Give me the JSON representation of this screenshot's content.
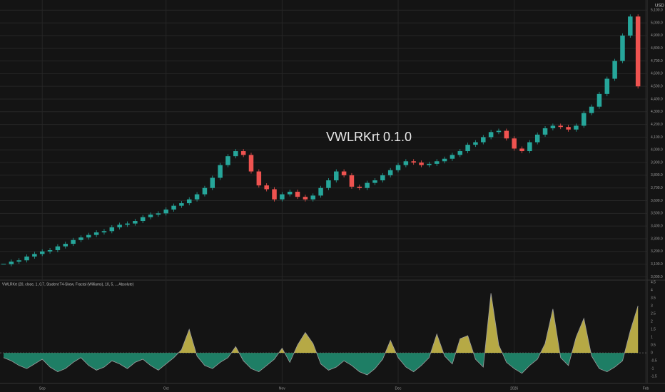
{
  "chart_data": [
    {
      "type": "candlestick",
      "watermark": "VWLRKrt 0.1.0",
      "currency": "USD",
      "values": [
        3100,
        3120,
        3130,
        3160,
        3180,
        3200,
        3210,
        3240,
        3260,
        3290,
        3310,
        3330,
        3350,
        3360,
        3390,
        3410,
        3420,
        3440,
        3470,
        3490,
        3500,
        3530,
        3560,
        3580,
        3610,
        3650,
        3700,
        3780,
        3880,
        3950,
        3990,
        3960,
        3830,
        3720,
        3690,
        3610,
        3650,
        3670,
        3630,
        3610,
        3640,
        3700,
        3760,
        3830,
        3800,
        3710,
        3700,
        3740,
        3760,
        3800,
        3840,
        3880,
        3910,
        3900,
        3880,
        3890,
        3910,
        3930,
        3960,
        3990,
        4040,
        4060,
        4100,
        4140,
        4150,
        4090,
        4010,
        3990,
        4060,
        4120,
        4170,
        4190,
        4180,
        4160,
        4190,
        4290,
        4340,
        4440,
        4560,
        4700,
        4900,
        5050,
        4500
      ],
      "xlim": [
        0,
        83
      ],
      "xticks": [
        {
          "value": 5,
          "label": "Sep"
        },
        {
          "value": 21,
          "label": "Oct"
        },
        {
          "value": 36,
          "label": "Nov"
        },
        {
          "value": 51,
          "label": "Dec"
        },
        {
          "value": 66,
          "label": "2026"
        },
        {
          "value": 83,
          "label": "Feb"
        }
      ],
      "ylim": [
        2980,
        5180
      ],
      "yticks": [
        {
          "value": 3000,
          "label": "3,000.0"
        },
        {
          "value": 3100,
          "label": "3,100.0"
        },
        {
          "value": 3200,
          "label": "3,200.0"
        },
        {
          "value": 3300,
          "label": "3,300.0"
        },
        {
          "value": 3400,
          "label": "3,400.0"
        },
        {
          "value": 3500,
          "label": "3,500.0"
        },
        {
          "value": 3600,
          "label": "3,600.0"
        },
        {
          "value": 3700,
          "label": "3,700.0"
        },
        {
          "value": 3800,
          "label": "3,800.0"
        },
        {
          "value": 3900,
          "label": "3,900.0"
        },
        {
          "value": 4000,
          "label": "4,000.0"
        },
        {
          "value": 4100,
          "label": "4,100.0"
        },
        {
          "value": 4200,
          "label": "4,200.0"
        },
        {
          "value": 4300,
          "label": "4,300.0"
        },
        {
          "value": 4400,
          "label": "4,400.0"
        },
        {
          "value": 4500,
          "label": "4,500.0"
        },
        {
          "value": 4600,
          "label": "4,600.0"
        },
        {
          "value": 4700,
          "label": "4,700.0"
        },
        {
          "value": 4800,
          "label": "4,800.0"
        },
        {
          "value": 4900,
          "label": "4,900.0"
        },
        {
          "value": 5000,
          "label": "5,000.0"
        },
        {
          "value": 5100,
          "label": "5,100.0"
        }
      ],
      "colors": {
        "up": "#26a69a",
        "down": "#ef5350"
      },
      "grid": true
    },
    {
      "type": "area",
      "title": "VWLRKrt (20, close, 1, 0.7, Student T4-Skew, Fractal (Williams), 10, 5, ... Absolute)",
      "values": [
        -0.3,
        -0.5,
        -0.8,
        -1.0,
        -0.7,
        -0.4,
        -0.9,
        -1.2,
        -1.0,
        -0.6,
        -0.3,
        -0.8,
        -1.1,
        -0.9,
        -0.5,
        -0.7,
        -1.0,
        -0.6,
        -0.4,
        -0.8,
        -1.1,
        -0.7,
        -0.3,
        0.2,
        1.5,
        -0.2,
        -0.8,
        -1.0,
        -0.6,
        -0.3,
        0.4,
        -0.5,
        -1.0,
        -1.2,
        -0.8,
        -0.4,
        0.3,
        -0.6,
        0.5,
        1.3,
        0.6,
        -0.7,
        -1.1,
        -0.9,
        -0.5,
        -0.8,
        -1.2,
        -1.4,
        -1.0,
        -0.4,
        0.8,
        -0.3,
        -0.9,
        -1.2,
        -0.8,
        -0.3,
        1.2,
        -0.2,
        -0.7,
        0.9,
        1.1,
        -0.4,
        -0.9,
        3.8,
        0.5,
        -0.6,
        -1.0,
        -1.3,
        -0.8,
        -0.4,
        0.6,
        2.8,
        -0.3,
        -0.8,
        1.0,
        2.2,
        -0.2,
        -1.0,
        -1.2,
        -0.9,
        -0.5,
        1.4,
        3.0
      ],
      "xlim": [
        0,
        83
      ],
      "ylim": [
        -1.9,
        4.5
      ],
      "yticks": [
        -1.5,
        -1,
        -0.5,
        0,
        0.5,
        1,
        1.5,
        2,
        2.5,
        3,
        3.5,
        4,
        4.5
      ],
      "color_pos": "#c8b94a",
      "color_neg": "#1f8a6e",
      "grid": true
    }
  ]
}
